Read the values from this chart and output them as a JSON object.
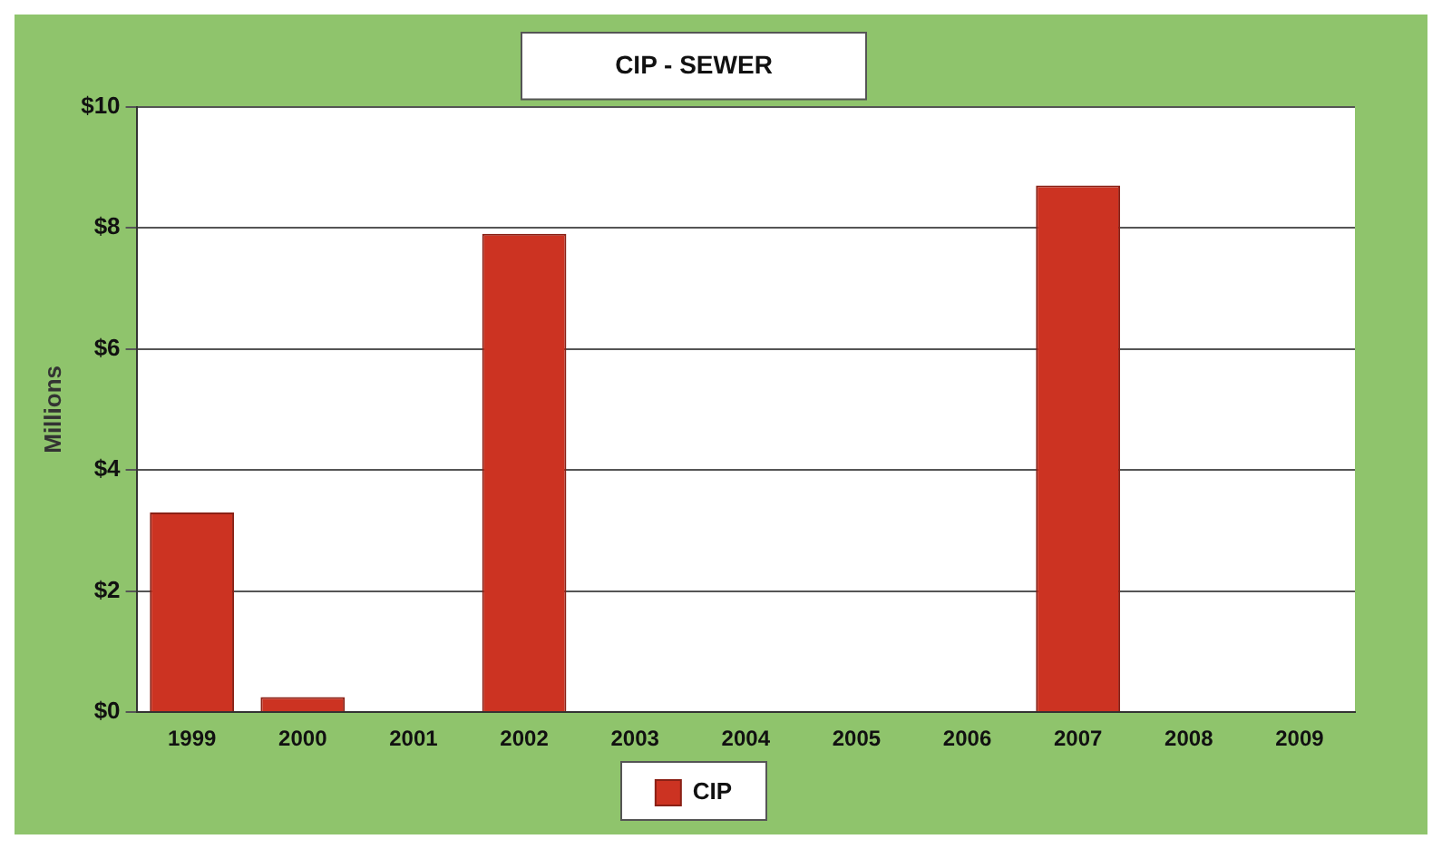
{
  "chart_data": {
    "type": "bar",
    "title": "CIP - SEWER",
    "ylabel": "Millions",
    "categories": [
      "1999",
      "2000",
      "2001",
      "2002",
      "2003",
      "2004",
      "2005",
      "2006",
      "2007",
      "2008",
      "2009"
    ],
    "series": [
      {
        "name": "CIP",
        "color": "#cc3322",
        "values": [
          3.3,
          0.25,
          0,
          7.9,
          0,
          0,
          0,
          0,
          8.7,
          0,
          0
        ]
      }
    ],
    "ylim": [
      0,
      10
    ],
    "yticks": [
      {
        "value": 0,
        "label": "$0"
      },
      {
        "value": 2,
        "label": "$2"
      },
      {
        "value": 4,
        "label": "$4"
      },
      {
        "value": 6,
        "label": "$6"
      },
      {
        "value": 8,
        "label": "$8"
      },
      {
        "value": 10,
        "label": "$10"
      }
    ],
    "grid": "y",
    "legend": "bottom"
  }
}
